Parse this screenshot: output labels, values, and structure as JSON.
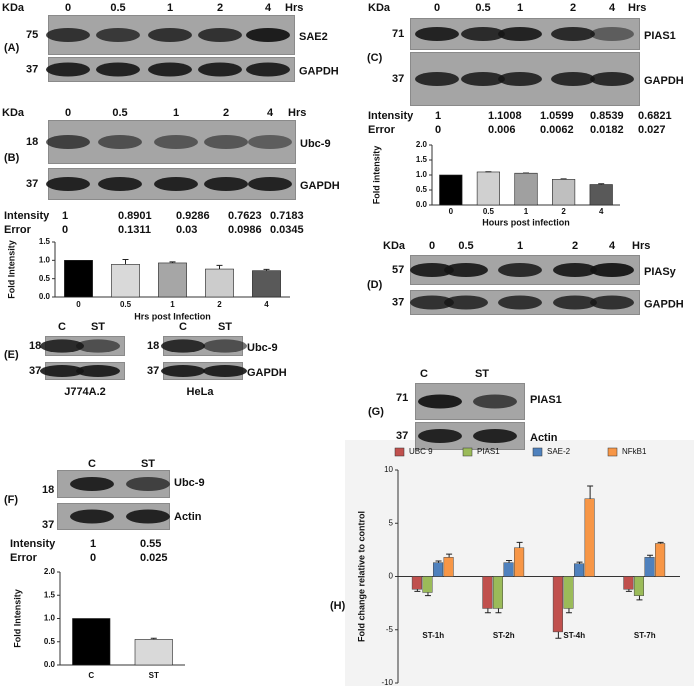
{
  "lanes": [
    "0",
    "0.5",
    "1",
    "2",
    "4"
  ],
  "hrs": "Hrs",
  "kda": "KDa",
  "intensity_label": "Intensity",
  "error_label": "Error",
  "panel_A": {
    "label": "(A)",
    "markers": [
      "75",
      "37"
    ],
    "proteins": [
      "SAE2",
      "GAPDH"
    ]
  },
  "panel_B": {
    "label": "(B)",
    "markers": [
      "18",
      "37"
    ],
    "proteins": [
      "Ubc-9",
      "GAPDH"
    ]
  },
  "panel_C": {
    "label": "(C)",
    "markers": [
      "71",
      "37"
    ],
    "proteins": [
      "PIAS1",
      "GAPDH"
    ]
  },
  "panel_D": {
    "label": "(D)",
    "markers": [
      "57",
      "37"
    ],
    "proteins": [
      "PIASy",
      "GAPDH"
    ]
  },
  "panel_E": {
    "label": "(E)",
    "lanes": [
      "C",
      "ST"
    ],
    "markers": [
      "18",
      "37"
    ],
    "proteins": [
      "Ubc-9",
      "GAPDH"
    ],
    "cell_lines": [
      "J774A.2",
      "HeLa"
    ]
  },
  "panel_F": {
    "label": "(F)",
    "lanes": [
      "C",
      "ST"
    ],
    "markers": [
      "18",
      "37"
    ],
    "proteins": [
      "Ubc-9",
      "Actin"
    ]
  },
  "panel_G": {
    "label": "(G)",
    "lanes": [
      "C",
      "ST"
    ],
    "markers": [
      "71",
      "37"
    ],
    "proteins": [
      "PIAS1",
      "Actin"
    ]
  },
  "panel_H": {
    "label": "(H)"
  },
  "chart_data": [
    {
      "type": "bar",
      "ylabel": "Fold Intensity",
      "xlabel": "Hrs post Infection",
      "categories": [
        "0",
        "0.5",
        "1",
        "2",
        "4"
      ],
      "values": [
        1,
        0.8901,
        0.9286,
        0.7623,
        0.7183
      ],
      "errors": [
        0,
        0.1311,
        0.03,
        0.0986,
        0.0345
      ],
      "colors": [
        "#000000",
        "#d9d9d9",
        "#a6a6a6",
        "#cccccc",
        "#595959"
      ],
      "ylim": [
        0,
        1.5
      ],
      "yticks": [
        {
          "value": 0,
          "label": "0.0"
        },
        {
          "value": 0.5,
          "label": "0.5"
        },
        {
          "value": 1,
          "label": "1.0"
        },
        {
          "value": 1.5,
          "label": "1.5"
        }
      ]
    },
    {
      "type": "bar",
      "ylabel": "Fold intensity",
      "xlabel": "Hours post infection",
      "categories": [
        "0",
        "0.5",
        "1",
        "2",
        "4"
      ],
      "values": [
        1,
        1.1008,
        1.0599,
        0.8539,
        0.6821
      ],
      "errors": [
        0,
        0.006,
        0.0062,
        0.0182,
        0.027
      ],
      "colors": [
        "#000000",
        "#d0d0d0",
        "#a0a0a0",
        "#bfbfbf",
        "#595959"
      ],
      "ylim": [
        0,
        2
      ],
      "yticks": [
        {
          "value": 0,
          "label": "0.0"
        },
        {
          "value": 0.5,
          "label": "0.5"
        },
        {
          "value": 1,
          "label": "1.0"
        },
        {
          "value": 1.5,
          "label": "1.5"
        },
        {
          "value": 2,
          "label": "2.0"
        }
      ]
    },
    {
      "type": "bar",
      "ylabel": "Fold Intensity",
      "categories": [
        "C",
        "ST"
      ],
      "values": [
        1,
        0.55
      ],
      "errors": [
        0,
        0.025
      ],
      "colors": [
        "#000000",
        "#d9d9d9"
      ],
      "ylim": [
        0,
        2
      ],
      "yticks": [
        {
          "value": 0,
          "label": "0.0"
        },
        {
          "value": 0.5,
          "label": "0.5"
        },
        {
          "value": 1,
          "label": "1.0"
        },
        {
          "value": 1.5,
          "label": "1.5"
        },
        {
          "value": 2,
          "label": "2.0"
        }
      ]
    },
    {
      "type": "bar",
      "ylabel": "Fold change relative to control",
      "categories": [
        "ST-1h",
        "ST-2h",
        "ST-4h",
        "ST-7h"
      ],
      "series": [
        {
          "name": "UBC 9",
          "color": "#c0504d",
          "values": [
            -1.2,
            -3,
            -5.2,
            -1.2
          ],
          "errors": [
            0.2,
            0.4,
            0.6,
            0.2
          ]
        },
        {
          "name": "PIAS1",
          "color": "#9bbb59",
          "values": [
            -1.5,
            -3,
            -3,
            -1.8
          ],
          "errors": [
            0.3,
            0.4,
            0.4,
            0.4
          ]
        },
        {
          "name": "SAE-2",
          "color": "#4f81bd",
          "values": [
            1.3,
            1.3,
            1.2,
            1.8
          ],
          "errors": [
            0.15,
            0.2,
            0.15,
            0.2
          ]
        },
        {
          "name": "NFkB1",
          "color": "#f79646",
          "values": [
            1.8,
            2.7,
            7.3,
            3.1
          ],
          "errors": [
            0.3,
            0.5,
            1.2,
            0.1
          ]
        }
      ],
      "ylim": [
        -10,
        10
      ],
      "yticks": [
        -10,
        -5,
        0,
        5,
        10
      ]
    }
  ]
}
